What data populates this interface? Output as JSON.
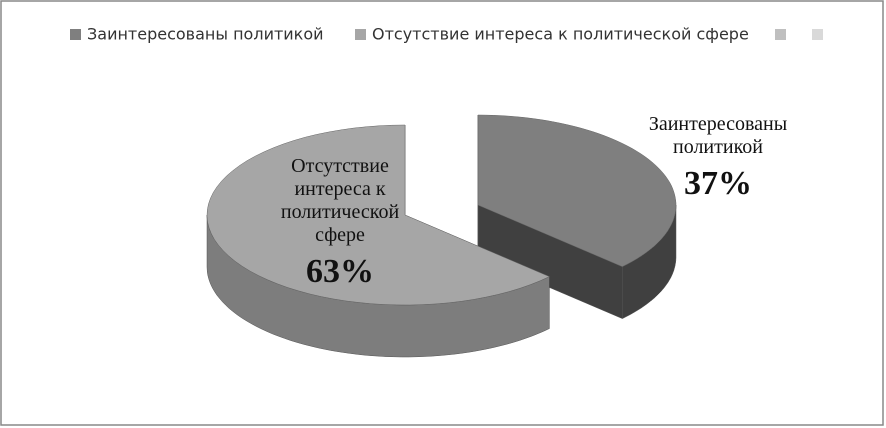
{
  "chart_data": {
    "type": "pie3d",
    "categories": [
      "Заинтересованы политикой",
      "Отсутствие интереса к политической сфере",
      null,
      null
    ],
    "values": [
      37,
      63,
      null,
      null
    ],
    "value_labels": [
      "37%",
      "63%",
      null,
      null
    ],
    "colors": [
      "#7f7f7f",
      "#a6a6a6",
      "#bfbfbf",
      "#d9d9d9"
    ],
    "legend": "top"
  }
}
